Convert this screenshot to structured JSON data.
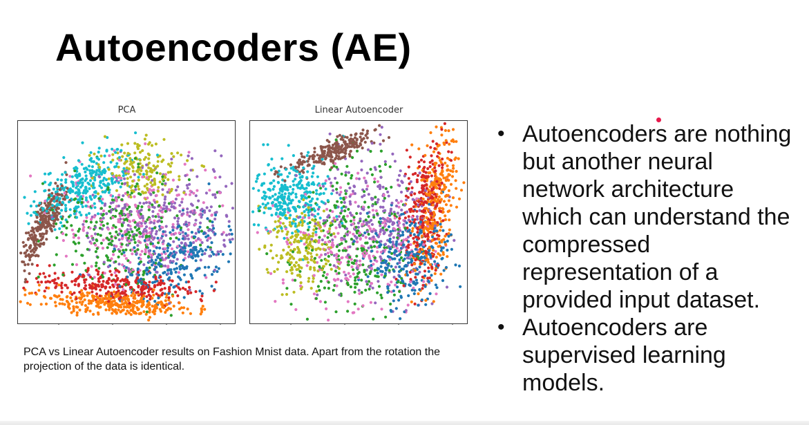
{
  "slide": {
    "title": "Autoencoders (AE)",
    "caption": "PCA vs Linear Autoencoder results on Fashion Mnist data. Apart from the rotation the projection of the data is identical.",
    "bullets": [
      "Autoencoders are nothing but another neural network architecture which can understand the compressed representation of a provided input dataset.",
      "Autoencoders are supervised learning models."
    ],
    "bullet_glyph": "•"
  },
  "chart_data": [
    {
      "type": "scatter",
      "title": "PCA",
      "xlabel": "",
      "ylabel": "",
      "grid": false,
      "legend": "none",
      "series_colors": [
        "#1f77b4",
        "#ff7f0e",
        "#2ca02c",
        "#d62728",
        "#9467bd",
        "#8c564b",
        "#e377c2",
        "#bcbd22",
        "#17becf"
      ]
    },
    {
      "type": "scatter",
      "title": "Linear Autoencoder",
      "xlabel": "",
      "ylabel": "",
      "grid": false,
      "legend": "none",
      "series_colors": [
        "#1f77b4",
        "#ff7f0e",
        "#2ca02c",
        "#d62728",
        "#9467bd",
        "#8c564b",
        "#e377c2",
        "#bcbd22",
        "#17becf"
      ]
    }
  ]
}
